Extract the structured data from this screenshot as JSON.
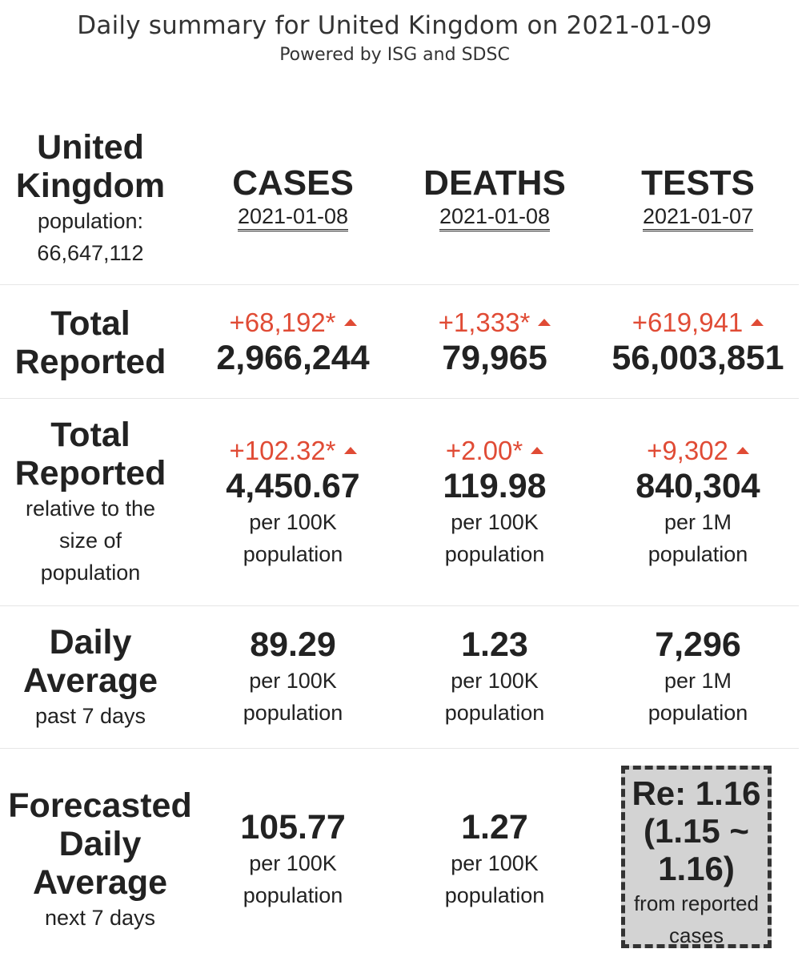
{
  "header": {
    "title": "Daily summary for United Kingdom on 2021-01-09",
    "subtitle": "Powered by ISG and SDSC"
  },
  "region": {
    "name_line1": "United",
    "name_line2": "Kingdom",
    "population_label": "population:",
    "population_value": "66,647,112"
  },
  "columns": [
    {
      "heading": "CASES",
      "date": "2021-01-08"
    },
    {
      "heading": "DEATHS",
      "date": "2021-01-08"
    },
    {
      "heading": "TESTS",
      "date": "2021-01-07"
    }
  ],
  "total_reported": {
    "label_line1": "Total",
    "label_line2": "Reported",
    "cells": [
      {
        "delta": "+68,192*",
        "value": "2,966,244"
      },
      {
        "delta": "+1,333*",
        "value": "79,965"
      },
      {
        "delta": "+619,941",
        "value": "56,003,851"
      }
    ]
  },
  "relative": {
    "label_line1": "Total",
    "label_line2": "Reported",
    "desc_line1": "relative to the",
    "desc_line2": "size of",
    "desc_line3": "population",
    "cells": [
      {
        "delta": "+102.32*",
        "value": "4,450.67",
        "unit_line1": "per 100K",
        "unit_line2": "population"
      },
      {
        "delta": "+2.00*",
        "value": "119.98",
        "unit_line1": "per 100K",
        "unit_line2": "population"
      },
      {
        "delta": "+9,302",
        "value": "840,304",
        "unit_line1": "per 1M",
        "unit_line2": "population"
      }
    ]
  },
  "daily_avg": {
    "label_line1": "Daily",
    "label_line2": "Average",
    "desc": "past 7 days",
    "cells": [
      {
        "value": "89.29",
        "unit_line1": "per 100K",
        "unit_line2": "population"
      },
      {
        "value": "1.23",
        "unit_line1": "per 100K",
        "unit_line2": "population"
      },
      {
        "value": "7,296",
        "unit_line1": "per 1M",
        "unit_line2": "population"
      }
    ]
  },
  "forecast": {
    "label_line1": "Forecasted",
    "label_line2": "Daily",
    "label_line3": "Average",
    "desc": "next 7 days",
    "cells": [
      {
        "value": "105.77",
        "unit_line1": "per 100K",
        "unit_line2": "population"
      },
      {
        "value": "1.27",
        "unit_line1": "per 100K",
        "unit_line2": "population"
      }
    ],
    "re": {
      "line1": "Re: 1.16",
      "line2": "(1.15 ~",
      "line3": "1.16)",
      "sub_line1": "from reported",
      "sub_line2": "cases"
    }
  },
  "colors": {
    "increase": "#e04b35",
    "text": "#222222",
    "re_box_bg": "#d3d3d3"
  },
  "icons": {
    "increase_marker": "triangle-up-icon"
  }
}
